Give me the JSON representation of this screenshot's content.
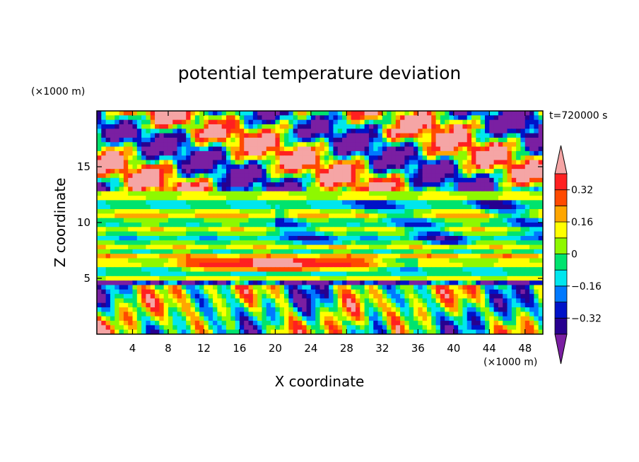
{
  "chart_data": {
    "type": "heatmap",
    "title": "potential temperature deviation",
    "xlabel": "X coordinate",
    "ylabel": "Z coordinate",
    "x_unit": "(×1000 m)",
    "y_unit": "(×1000 m)",
    "time_label": "t=720000 s",
    "xlim": [
      0,
      50
    ],
    "ylim": [
      0,
      20
    ],
    "x_ticks": [
      4,
      8,
      12,
      16,
      20,
      24,
      28,
      32,
      36,
      40,
      44,
      48
    ],
    "y_ticks": [
      5,
      10,
      15
    ],
    "colorbar": {
      "levels": [
        -0.4,
        -0.32,
        -0.24,
        -0.16,
        -0.08,
        0,
        0.08,
        0.16,
        0.24,
        0.32,
        0.4
      ],
      "labels": [
        "0.32",
        "0.16",
        "0",
        "−0.16",
        "−0.32"
      ],
      "label_values": [
        0.32,
        0.16,
        0,
        -0.16,
        -0.32
      ],
      "colors": [
        "#7a1fa2",
        "#27008f",
        "#0012c8",
        "#0079ff",
        "#00e6ee",
        "#00e36e",
        "#8ef800",
        "#ffff00",
        "#ffa600",
        "#ff4a00",
        "#ff2020",
        "#f5a5a5"
      ],
      "over_color": "#f5a5a5",
      "under_color": "#7a1fa2",
      "extend": "both"
    },
    "field_description_regions": [
      {
        "x": [
          0,
          50
        ],
        "z": [
          0,
          5
        ],
        "pattern": "convective plumes, mixed warm and cold"
      },
      {
        "x": [
          0,
          50
        ],
        "z": [
          5,
          13
        ],
        "pattern": "horizontal layered bands near zero"
      },
      {
        "x": [
          0,
          50
        ],
        "z": [
          13,
          20
        ],
        "pattern": "strong warm (pink) and cold (purple) patches"
      }
    ]
  }
}
